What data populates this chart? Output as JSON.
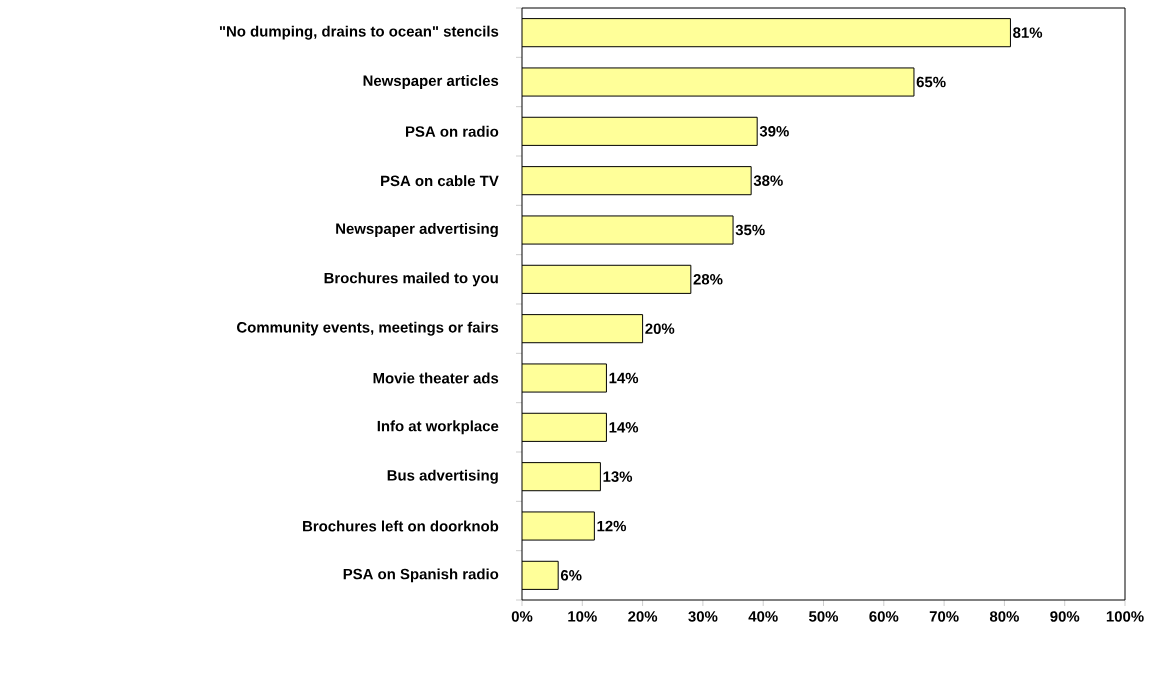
{
  "chart_data": {
    "type": "bar",
    "orientation": "horizontal",
    "categories": [
      "\"No dumping, drains to ocean\" stencils",
      "Newspaper articles",
      "PSA on radio",
      "PSA on cable TV",
      "Newspaper advertising",
      "Brochures mailed to you",
      "Community events, meetings or fairs",
      "Movie theater ads",
      "Info at workplace",
      "Bus advertising",
      "Brochures left on doorknob",
      "PSA on Spanish radio"
    ],
    "values": [
      81,
      65,
      39,
      38,
      35,
      28,
      20,
      14,
      14,
      13,
      12,
      6
    ],
    "value_labels": [
      "81%",
      "65%",
      "39%",
      "38%",
      "35%",
      "28%",
      "20%",
      "14%",
      "14%",
      "13%",
      "12%",
      "6%"
    ],
    "color": "#ffff99",
    "xlim": [
      0,
      100
    ],
    "xticks": [
      {
        "value": 0,
        "label": "0%"
      },
      {
        "value": 10,
        "label": "10%"
      },
      {
        "value": 20,
        "label": "20%"
      },
      {
        "value": 30,
        "label": "30%"
      },
      {
        "value": 40,
        "label": "40%"
      },
      {
        "value": 50,
        "label": "50%"
      },
      {
        "value": 60,
        "label": "60%"
      },
      {
        "value": 70,
        "label": "70%"
      },
      {
        "value": 80,
        "label": "80%"
      },
      {
        "value": 90,
        "label": "90%"
      },
      {
        "value": 100,
        "label": "100%"
      }
    ]
  }
}
